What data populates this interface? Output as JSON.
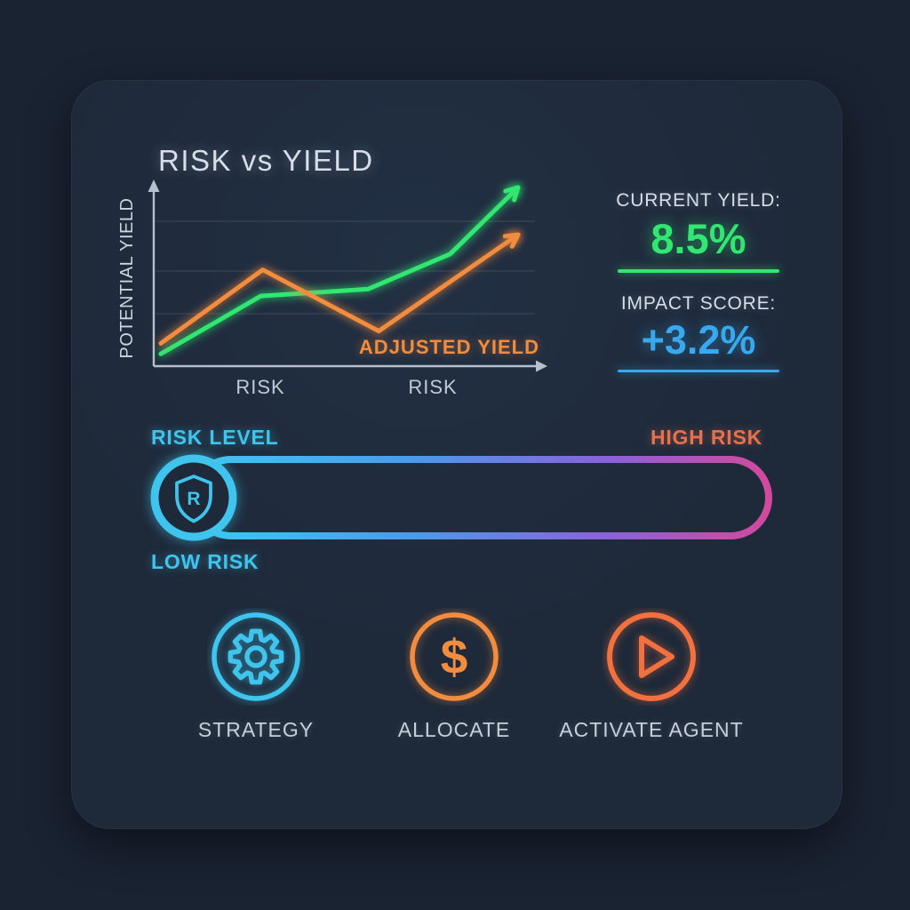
{
  "colors": {
    "background": "#1a2332",
    "panel": "#1e2939",
    "text_light": "#d7dee8",
    "text_muted": "#bcc6d3",
    "green": "#31e671",
    "orange": "#f28c3e",
    "orange_red": "#f3703f",
    "blue": "#38a9ee",
    "cyan": "#3fc4ee",
    "high_risk_orange": "#e7714d",
    "slider_gradient": [
      "#3dc9f2",
      "#4b9be9",
      "#8a62d8",
      "#d2499c"
    ]
  },
  "chart": {
    "title": "RISK vs YIELD",
    "y_axis_label": "POTENTIAL YIELD",
    "x_axis_label_left": "RISK",
    "x_axis_label_right": "RISK",
    "annotation": "ADJUSTED YIELD"
  },
  "chart_data": {
    "type": "line",
    "title": "RISK vs YIELD",
    "xlabel": "RISK",
    "ylabel": "POTENTIAL YIELD",
    "xlim": [
      0,
      1
    ],
    "ylim": [
      0,
      10.5
    ],
    "grid": "horizontal, 3 lines, unlabeled axes",
    "legend": "inline annotation 'ADJUSTED YIELD' on orange series",
    "series": [
      {
        "name": "POTENTIAL YIELD",
        "color": "#31e671",
        "x": [
          0,
          0.28,
          0.58,
          0.81,
          1.0
        ],
        "values": [
          0.7,
          4.0,
          4.4,
          6.4,
          10.2
        ],
        "marker_end": "arrow"
      },
      {
        "name": "ADJUSTED YIELD",
        "color": "#f28c3e",
        "x": [
          0,
          0.285,
          0.61,
          1.0
        ],
        "values": [
          1.3,
          5.5,
          2.0,
          7.5
        ],
        "marker_end": "arrow"
      }
    ]
  },
  "metrics": {
    "current_yield": {
      "label": "CURRENT YIELD:",
      "value": "8.5%",
      "color": "#31e671"
    },
    "impact_score": {
      "label": "IMPACT SCORE:",
      "value": "+3.2%",
      "color": "#38a9ee"
    }
  },
  "slider": {
    "label": "RISK LEVEL",
    "low_label": "LOW RISK",
    "high_label": "HIGH RISK",
    "thumb_letter": "R",
    "thumb_position": "low"
  },
  "actions": [
    {
      "label": "STRATEGY",
      "icon": "gear",
      "color": "#3fc4ee"
    },
    {
      "label": "ALLOCATE",
      "icon": "dollar",
      "glyph": "$",
      "color": "#f28c3e"
    },
    {
      "label": "ACTIVATE AGENT",
      "icon": "play",
      "color": "#f3703f"
    }
  ]
}
